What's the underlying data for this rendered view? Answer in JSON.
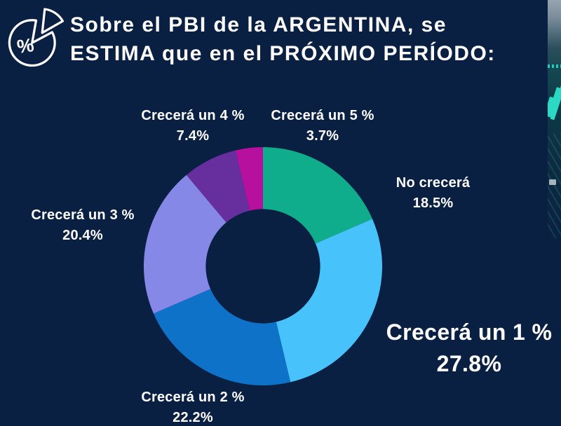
{
  "header": {
    "title_line1": "Sobre el PBI de la ARGENTINA, se",
    "title_line2": "ESTIMA que en el PRÓXIMO PERÍODO:",
    "icon": "pie-percent-icon"
  },
  "colors": {
    "background": "#0a2042",
    "text": "#ffffff",
    "strip_accent": "#2bd9c5"
  },
  "chart_data": {
    "type": "pie",
    "subtype": "donut",
    "title": "Sobre el PBI de la ARGENTINA, se ESTIMA que en el PRÓXIMO PERÍODO:",
    "direction": "clockwise",
    "start_angle_deg": 0,
    "donut_hole_ratio": 0.48,
    "legend_position": "around-slices",
    "slices": [
      {
        "label": "No crecerá",
        "value": 18.5,
        "display": "18.5%",
        "color": "#0fad8c",
        "emphasis": false
      },
      {
        "label": "Crecerá un 1 %",
        "value": 27.8,
        "display": "27.8%",
        "color": "#48c2fa",
        "emphasis": true
      },
      {
        "label": "Crecerá un 2 %",
        "value": 22.2,
        "display": "22.2%",
        "color": "#0e72c8",
        "emphasis": false
      },
      {
        "label": "Crecerá un 3 %",
        "value": 20.4,
        "display": "20.4%",
        "color": "#8688e8",
        "emphasis": false
      },
      {
        "label": "Crecerá un 4 %",
        "value": 7.4,
        "display": "7.4%",
        "color": "#672f9e",
        "emphasis": false
      },
      {
        "label": "Crecerá un 5 %",
        "value": 3.7,
        "display": "3.7%",
        "color": "#b8109e",
        "emphasis": false
      }
    ]
  }
}
